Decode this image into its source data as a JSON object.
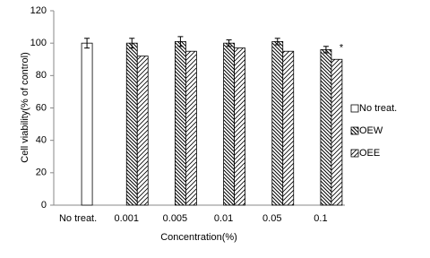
{
  "chart_data": {
    "type": "bar",
    "y_label": "Cell viability(% of control)",
    "x_label": "Concentration(%)",
    "categories": [
      "No treat.",
      "0.001",
      "0.005",
      "0.01",
      "0.05",
      "0.1"
    ],
    "series": [
      {
        "name": "No treat.",
        "color": "#000000",
        "values": [
          100,
          null,
          null,
          null,
          null,
          null
        ],
        "errors": [
          3,
          null,
          null,
          null,
          null,
          null
        ]
      },
      {
        "name": "OEW",
        "color": "#000000",
        "values": [
          null,
          100,
          101,
          100,
          101,
          96
        ],
        "errors": [
          null,
          3,
          3,
          2,
          2,
          2
        ]
      },
      {
        "name": "OEE",
        "color": "#000000",
        "values": [
          null,
          92,
          95,
          97,
          95,
          90
        ],
        "errors": [
          null,
          null,
          null,
          null,
          null,
          null
        ]
      }
    ],
    "annotation": "*",
    "ylim": [
      0,
      120
    ],
    "yticks": [
      0,
      20,
      40,
      60,
      80,
      100,
      120
    ],
    "legend": "right"
  }
}
